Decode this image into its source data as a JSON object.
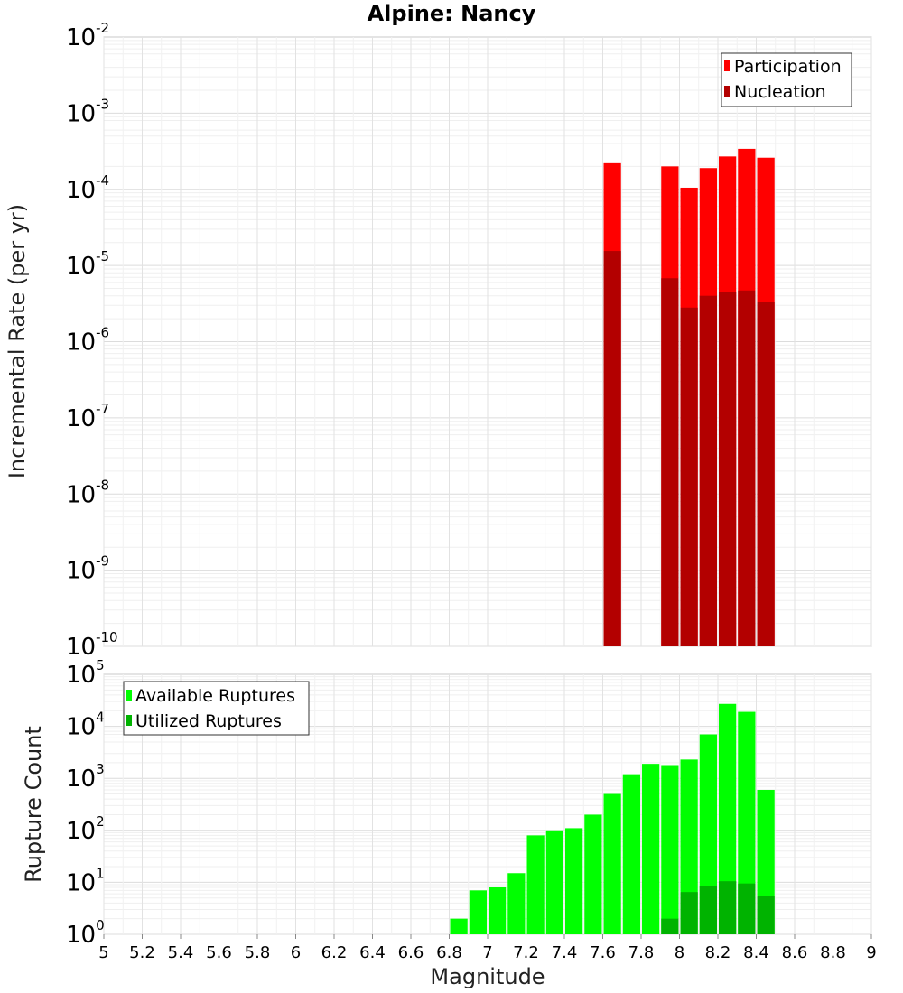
{
  "chart_data": [
    {
      "type": "bar",
      "title": "Alpine: Nancy",
      "xlabel": "",
      "ylabel": "Incremental Rate (per yr)",
      "xlim": [
        5,
        9
      ],
      "ylim": [
        1e-10,
        0.01
      ],
      "yscale": "log",
      "y_tick_exponents": [
        -10,
        -9,
        -8,
        -7,
        -6,
        -5,
        -4,
        -3,
        -2
      ],
      "bin_width": 0.1,
      "grid": true,
      "legend": "top-right",
      "colors": {
        "Participation": "#ff0000",
        "Nucleation": "#b30000"
      },
      "series": [
        {
          "name": "Participation",
          "x": [
            7.65,
            7.95,
            8.05,
            8.15,
            8.25,
            8.35,
            8.45
          ],
          "values": [
            0.00022,
            0.0002,
            0.000105,
            0.00019,
            0.00027,
            0.00034,
            0.00026
          ]
        },
        {
          "name": "Nucleation",
          "x": [
            7.65,
            7.95,
            8.05,
            8.15,
            8.25,
            8.35,
            8.45
          ],
          "values": [
            1.55e-05,
            6.8e-06,
            2.8e-06,
            4e-06,
            4.5e-06,
            4.7e-06,
            3.3e-06
          ]
        }
      ]
    },
    {
      "type": "bar",
      "xlabel": "Magnitude",
      "ylabel": "Rupture Count",
      "xlim": [
        5,
        9
      ],
      "x_ticks": [
        "5",
        "5.2",
        "5.4",
        "5.6",
        "5.8",
        "6",
        "6.2",
        "6.4",
        "6.6",
        "6.8",
        "7",
        "7.2",
        "7.4",
        "7.6",
        "7.8",
        "8",
        "8.2",
        "8.4",
        "8.6",
        "8.8",
        "9"
      ],
      "ylim": [
        1,
        100000.0
      ],
      "yscale": "log",
      "y_tick_exponents": [
        0,
        1,
        2,
        3,
        4,
        5
      ],
      "bin_width": 0.1,
      "grid": true,
      "legend": "top-left",
      "colors": {
        "Available Ruptures": "#00ff00",
        "Utilized Ruptures": "#00b300"
      },
      "series": [
        {
          "name": "Available Ruptures",
          "x": [
            6.55,
            6.75,
            6.85,
            6.95,
            7.05,
            7.15,
            7.25,
            7.35,
            7.45,
            7.55,
            7.65,
            7.75,
            7.85,
            7.95,
            8.05,
            8.15,
            8.25,
            8.35,
            8.45
          ],
          "values": [
            1,
            1,
            2,
            7,
            8,
            15,
            80,
            100,
            110,
            200,
            500,
            1200,
            1900,
            1800,
            2300,
            7000,
            27000,
            19000,
            600
          ]
        },
        {
          "name": "Utilized Ruptures",
          "x": [
            7.65,
            7.95,
            8.05,
            8.15,
            8.25,
            8.35,
            8.45
          ],
          "values": [
            1,
            2,
            6.5,
            8.5,
            10.5,
            9.5,
            5.5
          ]
        }
      ]
    }
  ]
}
